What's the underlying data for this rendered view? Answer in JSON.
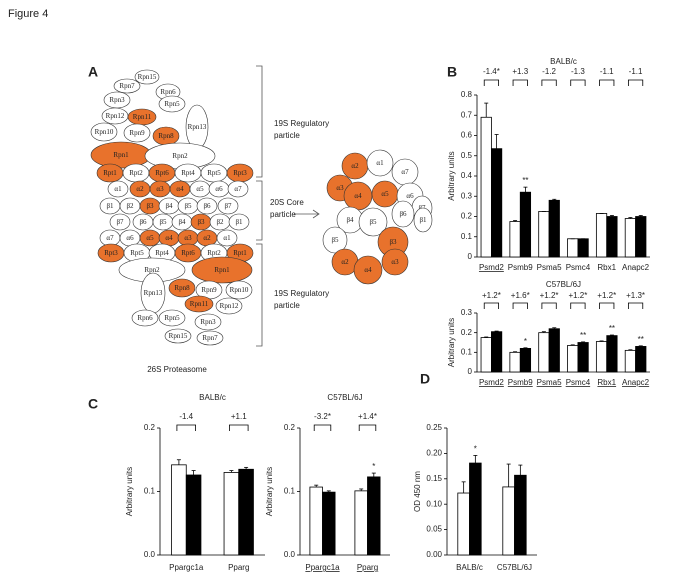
{
  "figure_title": "Figure 4",
  "panel_a": {
    "label": "A",
    "upper_19s": [
      "19S Regulatory",
      "particle"
    ],
    "core_20s": [
      "20S Core",
      "particle"
    ],
    "lower_19s": [
      "19S Regulatory",
      "particle"
    ],
    "caption": "26S Proteasome",
    "colors": {
      "highlight": "#e8722c",
      "plain": "#ffffff"
    },
    "nodes": [
      {
        "label": "Rpn15",
        "color": "#ffffff"
      },
      {
        "label": "Rpn7",
        "color": "#ffffff"
      },
      {
        "label": "Rpn6",
        "color": "#ffffff"
      },
      {
        "label": "Rpn3",
        "color": "#ffffff"
      },
      {
        "label": "Rpn5",
        "color": "#ffffff"
      },
      {
        "label": "Rpn12",
        "color": "#ffffff"
      },
      {
        "label": "Rpn11",
        "color": "#e8722c"
      },
      {
        "label": "Rpn13",
        "color": "#ffffff"
      },
      {
        "label": "Rpn10",
        "color": "#ffffff"
      },
      {
        "label": "Rpn9",
        "color": "#ffffff"
      },
      {
        "label": "Rpn8",
        "color": "#e8722c"
      },
      {
        "label": "Rpn1",
        "color": "#e8722c"
      },
      {
        "label": "Rpn2",
        "color": "#ffffff"
      },
      {
        "label": "Rpt1",
        "color": "#e8722c"
      },
      {
        "label": "Rpt2",
        "color": "#ffffff"
      },
      {
        "label": "Rpt6",
        "color": "#e8722c"
      },
      {
        "label": "Rpt4",
        "color": "#ffffff"
      },
      {
        "label": "Rpt5",
        "color": "#ffffff"
      },
      {
        "label": "Rpt3",
        "color": "#e8722c"
      },
      {
        "label": "α1",
        "color": "#ffffff"
      },
      {
        "label": "α2",
        "color": "#e8722c"
      },
      {
        "label": "α3",
        "color": "#e8722c"
      },
      {
        "label": "α4",
        "color": "#e8722c"
      },
      {
        "label": "α5",
        "color": "#ffffff"
      },
      {
        "label": "α6",
        "color": "#ffffff"
      },
      {
        "label": "α7",
        "color": "#ffffff"
      },
      {
        "label": "β1",
        "color": "#ffffff"
      },
      {
        "label": "β2",
        "color": "#ffffff"
      },
      {
        "label": "β3",
        "color": "#e8722c"
      },
      {
        "label": "β4",
        "color": "#ffffff"
      },
      {
        "label": "β5",
        "color": "#ffffff"
      },
      {
        "label": "β6",
        "color": "#ffffff"
      },
      {
        "label": "β7",
        "color": "#ffffff"
      },
      {
        "label": "β7",
        "color": "#ffffff"
      },
      {
        "label": "β6",
        "color": "#ffffff"
      },
      {
        "label": "β5",
        "color": "#ffffff"
      },
      {
        "label": "β4",
        "color": "#ffffff"
      },
      {
        "label": "β3",
        "color": "#e8722c"
      },
      {
        "label": "β2",
        "color": "#ffffff"
      },
      {
        "label": "β1",
        "color": "#ffffff"
      },
      {
        "label": "α7",
        "color": "#ffffff"
      },
      {
        "label": "α6",
        "color": "#ffffff"
      },
      {
        "label": "α5",
        "color": "#e8722c"
      },
      {
        "label": "α4",
        "color": "#e8722c"
      },
      {
        "label": "α3",
        "color": "#e8722c"
      },
      {
        "label": "α2",
        "color": "#e8722c"
      },
      {
        "label": "α1",
        "color": "#ffffff"
      },
      {
        "label": "Rpt3",
        "color": "#e8722c"
      },
      {
        "label": "Rpt5",
        "color": "#ffffff"
      },
      {
        "label": "Rpt4",
        "color": "#ffffff"
      },
      {
        "label": "Rpt6",
        "color": "#e8722c"
      },
      {
        "label": "Rpt2",
        "color": "#ffffff"
      },
      {
        "label": "Rpt1",
        "color": "#e8722c"
      },
      {
        "label": "Rpn2",
        "color": "#ffffff"
      },
      {
        "label": "Rpn1",
        "color": "#e8722c"
      },
      {
        "label": "Rpn13",
        "color": "#ffffff"
      },
      {
        "label": "Rpn8",
        "color": "#e8722c"
      },
      {
        "label": "Rpn9",
        "color": "#ffffff"
      },
      {
        "label": "Rpn10",
        "color": "#ffffff"
      },
      {
        "label": "Rpn11",
        "color": "#e8722c"
      },
      {
        "label": "Rpn12",
        "color": "#ffffff"
      },
      {
        "label": "Rpn6",
        "color": "#ffffff"
      },
      {
        "label": "Rpn5",
        "color": "#ffffff"
      },
      {
        "label": "Rpn3",
        "color": "#ffffff"
      },
      {
        "label": "Rpn15",
        "color": "#ffffff"
      },
      {
        "label": "Rpn7",
        "color": "#ffffff"
      },
      {
        "label": "α2",
        "color": "#e8722c"
      },
      {
        "label": "α1",
        "color": "#ffffff"
      },
      {
        "label": "α7",
        "color": "#ffffff"
      },
      {
        "label": "α3",
        "color": "#e8722c"
      },
      {
        "label": "α4",
        "color": "#e8722c"
      },
      {
        "label": "α5",
        "color": "#e8722c"
      },
      {
        "label": "α6",
        "color": "#ffffff"
      },
      {
        "label": "β7",
        "color": "#ffffff"
      },
      {
        "label": "β4",
        "color": "#ffffff"
      },
      {
        "label": "β5",
        "color": "#ffffff"
      },
      {
        "label": "β6",
        "color": "#ffffff"
      },
      {
        "label": "β1",
        "color": "#ffffff"
      },
      {
        "label": "β5",
        "color": "#ffffff"
      },
      {
        "label": "β3",
        "color": "#e8722c"
      },
      {
        "label": "α2",
        "color": "#e8722c"
      },
      {
        "label": "α4",
        "color": "#e8722c"
      },
      {
        "label": "α3",
        "color": "#e8722c"
      }
    ]
  },
  "chart_data": [
    {
      "type": "bar",
      "panel": "B",
      "title": "BALB/c",
      "y_label": "Arbitrary units",
      "categories": [
        "Psmd2",
        "Psmb9",
        "Psma5",
        "Psmc4",
        "Rbx1",
        "Anapc2"
      ],
      "underline": [
        true,
        false,
        false,
        false,
        false,
        false
      ],
      "series": [
        {
          "color": "#ffffff",
          "values": [
            0.69,
            0.175,
            0.225,
            0.09,
            0.215,
            0.19
          ],
          "errors": [
            0.07,
            0.005,
            0,
            0,
            0,
            0.005
          ]
        },
        {
          "color": "#000000",
          "values": [
            0.535,
            0.32,
            0.28,
            0.09,
            0.2,
            0.2
          ],
          "errors": [
            0.07,
            0.025,
            0.005,
            0,
            0.005,
            0.005
          ]
        }
      ],
      "brackets": [
        "-1.4*",
        "+1.3",
        "-1.2",
        "-1.3",
        "-1.1",
        "-1.1"
      ],
      "stars": [
        null,
        "**",
        null,
        null,
        null,
        null
      ],
      "ylim": [
        0,
        0.8
      ],
      "yticks": [
        0,
        0.1,
        0.2,
        0.3,
        0.4,
        0.5,
        0.6,
        0.7,
        0.8
      ]
    },
    {
      "type": "bar",
      "title": "C57BL/6J",
      "y_label": "Arbitrary units",
      "categories": [
        "Psmd2",
        "Psmb9",
        "Psma5",
        "Psmc4",
        "Rbx1",
        "Anapc2"
      ],
      "underline": [
        true,
        true,
        true,
        true,
        true,
        true
      ],
      "series": [
        {
          "color": "#ffffff",
          "values": [
            0.175,
            0.1,
            0.2,
            0.135,
            0.155,
            0.11
          ],
          "errors": [
            0.003,
            0.003,
            0.005,
            0.003,
            0.003,
            0.003
          ]
        },
        {
          "color": "#000000",
          "values": [
            0.205,
            0.12,
            0.22,
            0.15,
            0.185,
            0.13
          ],
          "errors": [
            0.003,
            0.003,
            0.005,
            0.003,
            0.003,
            0.003
          ]
        }
      ],
      "brackets": [
        "+1.2*",
        "+1.6*",
        "+1.2*",
        "+1.2*",
        "+1.2*",
        "+1.3*"
      ],
      "stars": [
        null,
        "*",
        null,
        "**",
        "**",
        "**"
      ],
      "ylim": [
        0,
        0.3
      ],
      "yticks": [
        0,
        0.1,
        0.2,
        0.3
      ]
    },
    {
      "type": "bar",
      "panel": "C",
      "title": "BALB/c",
      "y_label": "Arbitrary units",
      "categories": [
        "Ppargc1a",
        "Pparg"
      ],
      "underline": [
        false,
        false
      ],
      "series": [
        {
          "color": "#ffffff",
          "values": [
            0.142,
            0.13
          ],
          "errors": [
            0.008,
            0.003
          ]
        },
        {
          "color": "#000000",
          "values": [
            0.126,
            0.135
          ],
          "errors": [
            0.007,
            0.003
          ]
        }
      ],
      "brackets": [
        "-1.4",
        "+1.1"
      ],
      "stars": [
        null,
        null
      ],
      "ylim": [
        0,
        0.2
      ],
      "yticks": [
        {
          "value": 0,
          "label": "0.0"
        },
        0.1,
        0.2
      ]
    },
    {
      "type": "bar",
      "title": "C57BL/6J",
      "y_label": "Arbitrary units",
      "categories": [
        "Ppargc1a",
        "Pparg"
      ],
      "underline": [
        true,
        true
      ],
      "series": [
        {
          "color": "#ffffff",
          "values": [
            0.107,
            0.101
          ],
          "errors": [
            0.003,
            0.003
          ]
        },
        {
          "color": "#000000",
          "values": [
            0.099,
            0.123
          ],
          "errors": [
            0.002,
            0.006
          ]
        }
      ],
      "brackets": [
        "-3.2*",
        "+1.4*"
      ],
      "stars": [
        null,
        "*"
      ],
      "ylim": [
        0,
        0.2
      ],
      "yticks": [
        {
          "value": 0,
          "label": "0.0"
        },
        0.1,
        0.2
      ]
    },
    {
      "type": "bar",
      "panel": "D",
      "y_label": "OD 450 nm",
      "categories": [
        "BALB/c",
        "C57BL/6J"
      ],
      "underline": [
        false,
        false
      ],
      "series": [
        {
          "color": "#ffffff",
          "values": [
            0.122,
            0.134
          ],
          "errors": [
            0.022,
            0.045
          ]
        },
        {
          "color": "#000000",
          "values": [
            0.181,
            0.157
          ],
          "errors": [
            0.015,
            0.02
          ]
        }
      ],
      "stars": [
        "*",
        null
      ],
      "ylim": [
        0,
        0.25
      ],
      "yticks": [
        {
          "value": 0,
          "label": "0.00"
        },
        {
          "value": 0.05,
          "label": "0.05"
        },
        {
          "value": 0.1,
          "label": "0.10"
        },
        {
          "value": 0.15,
          "label": "0.15"
        },
        {
          "value": 0.2,
          "label": "0.20"
        },
        {
          "value": 0.25,
          "label": "0.25"
        }
      ]
    }
  ]
}
